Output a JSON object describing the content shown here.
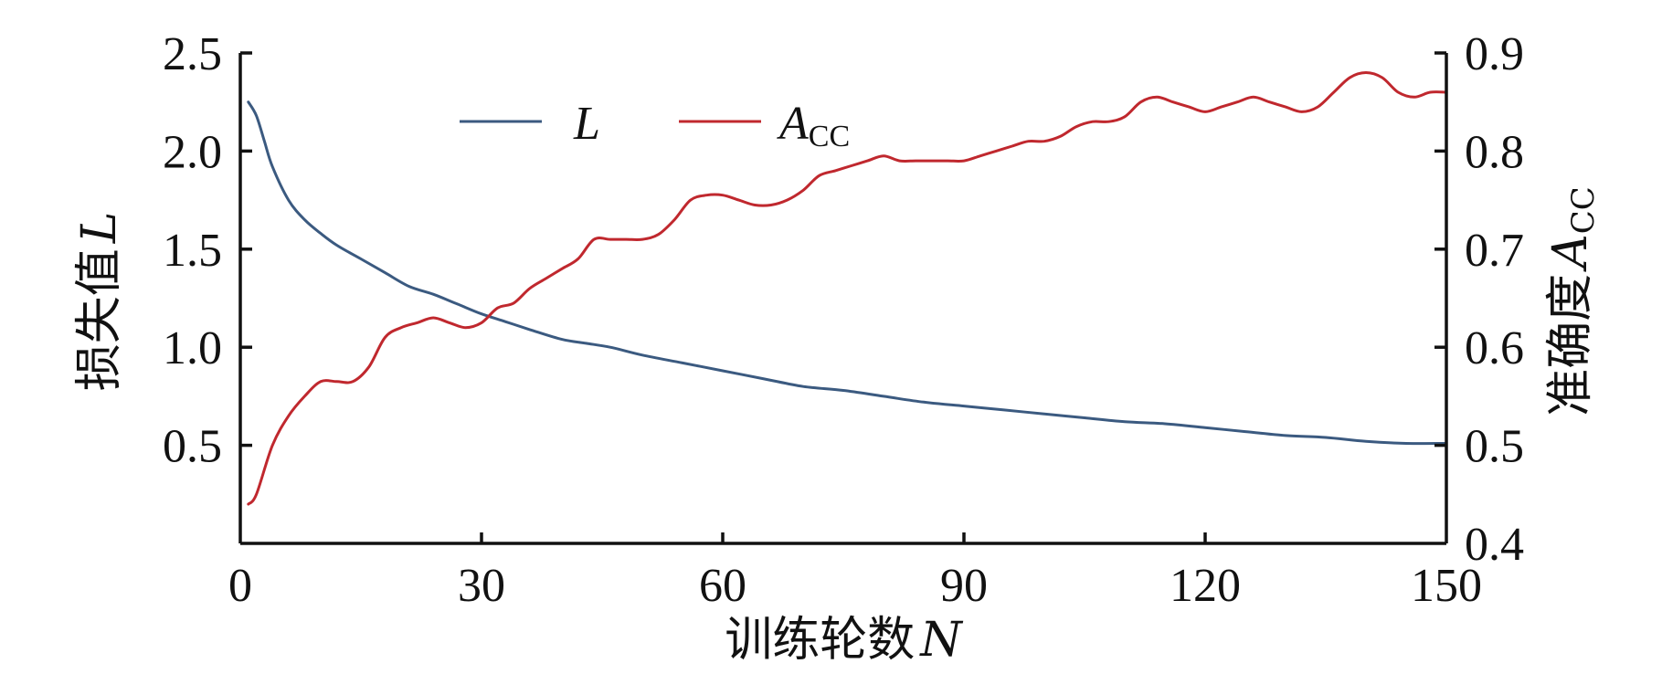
{
  "chart_data": {
    "type": "line",
    "xlabel_text": "训练轮数",
    "xlabel_var": "N",
    "ylabel_left_text": "损失值",
    "ylabel_left_var": "L",
    "ylabel_right_text": "准确度",
    "ylabel_right_var": "A",
    "ylabel_right_sub": "CC",
    "xlim": [
      0,
      150
    ],
    "ylim_left": [
      0,
      2.5
    ],
    "ylim_right": [
      0.4,
      0.9
    ],
    "x_ticks": [
      0,
      30,
      60,
      90,
      120,
      150
    ],
    "x_tick_labels": [
      "0",
      "30",
      "60",
      "90",
      "120",
      "150"
    ],
    "y_left_ticks": [
      0.5,
      1.0,
      1.5,
      2.0,
      2.5
    ],
    "y_left_tick_labels": [
      "0.5",
      "1.0",
      "1.5",
      "2.0",
      "2.5"
    ],
    "y_right_ticks": [
      0.4,
      0.5,
      0.6,
      0.7,
      0.8,
      0.9
    ],
    "y_right_tick_labels": [
      "0.4",
      "0.5",
      "0.6",
      "0.7",
      "0.8",
      "0.9"
    ],
    "legend_placement": "top-left",
    "series": [
      {
        "name": "L",
        "axis": "left",
        "color": "#3b5a80",
        "x": [
          1,
          2,
          3,
          4,
          6,
          8,
          10,
          12,
          15,
          18,
          21,
          24,
          27,
          30,
          33,
          36,
          40,
          43,
          46,
          50,
          55,
          60,
          65,
          70,
          75,
          80,
          85,
          90,
          95,
          100,
          105,
          110,
          115,
          120,
          125,
          130,
          135,
          140,
          145,
          150
        ],
        "values": [
          2.25,
          2.18,
          2.05,
          1.92,
          1.75,
          1.65,
          1.58,
          1.52,
          1.45,
          1.38,
          1.31,
          1.27,
          1.22,
          1.17,
          1.13,
          1.09,
          1.04,
          1.02,
          1.0,
          0.96,
          0.92,
          0.88,
          0.84,
          0.8,
          0.78,
          0.75,
          0.72,
          0.7,
          0.68,
          0.66,
          0.64,
          0.62,
          0.61,
          0.59,
          0.57,
          0.55,
          0.54,
          0.52,
          0.51,
          0.51
        ]
      },
      {
        "name": "A",
        "name_sub": "CC",
        "axis": "right",
        "color": "#c0282e",
        "x": [
          1,
          2,
          4,
          6,
          8,
          10,
          12,
          14,
          16,
          18,
          20,
          22,
          24,
          26,
          28,
          30,
          32,
          34,
          36,
          38,
          40,
          42,
          44,
          46,
          48,
          50,
          52,
          54,
          56,
          58,
          60,
          62,
          64,
          66,
          68,
          70,
          72,
          74,
          76,
          78,
          80,
          82,
          84,
          86,
          88,
          90,
          92,
          94,
          96,
          98,
          100,
          102,
          104,
          106,
          108,
          110,
          112,
          114,
          116,
          118,
          120,
          122,
          124,
          126,
          128,
          130,
          132,
          134,
          136,
          138,
          140,
          142,
          144,
          146,
          148,
          150
        ],
        "values": [
          0.44,
          0.45,
          0.5,
          0.53,
          0.55,
          0.565,
          0.565,
          0.565,
          0.58,
          0.61,
          0.62,
          0.625,
          0.63,
          0.625,
          0.62,
          0.625,
          0.64,
          0.645,
          0.66,
          0.67,
          0.68,
          0.69,
          0.71,
          0.71,
          0.71,
          0.71,
          0.715,
          0.73,
          0.75,
          0.755,
          0.755,
          0.75,
          0.745,
          0.745,
          0.75,
          0.76,
          0.775,
          0.78,
          0.785,
          0.79,
          0.795,
          0.79,
          0.79,
          0.79,
          0.79,
          0.79,
          0.795,
          0.8,
          0.805,
          0.81,
          0.81,
          0.815,
          0.825,
          0.83,
          0.83,
          0.835,
          0.85,
          0.855,
          0.85,
          0.845,
          0.84,
          0.845,
          0.85,
          0.855,
          0.85,
          0.845,
          0.84,
          0.845,
          0.86,
          0.875,
          0.88,
          0.875,
          0.86,
          0.855,
          0.86,
          0.86
        ]
      }
    ]
  }
}
